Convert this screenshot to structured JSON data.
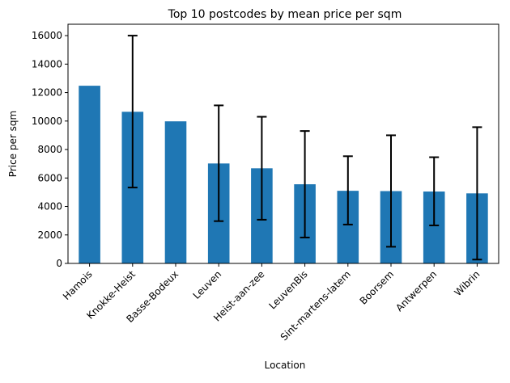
{
  "chart_data": {
    "type": "bar",
    "title": "Top 10 postcodes by mean price per sqm",
    "xlabel": "Location",
    "ylabel": "Price per sqm",
    "categories": [
      "Hamois",
      "Knokke-Heist",
      "Basse-Bodeux",
      "Leuven",
      "Heist-aan-zee",
      "LeuvenBis",
      "Sint-martens-latem",
      "Boorsem",
      "Antwerpen",
      "Wibrin"
    ],
    "values": [
      12480,
      10650,
      9980,
      7020,
      6680,
      5560,
      5100,
      5080,
      5050,
      4920
    ],
    "error_low": [
      null,
      5330,
      null,
      2970,
      3070,
      1820,
      2730,
      1170,
      2670,
      270
    ],
    "error_high": [
      null,
      16000,
      null,
      11100,
      10300,
      9300,
      7530,
      9000,
      7460,
      9570
    ],
    "ylim": [
      0,
      16800
    ],
    "yticks": [
      0,
      2000,
      4000,
      6000,
      8000,
      10000,
      12000,
      14000,
      16000
    ],
    "bar_color": "#1f77b4",
    "grid": false,
    "legend": "none"
  }
}
